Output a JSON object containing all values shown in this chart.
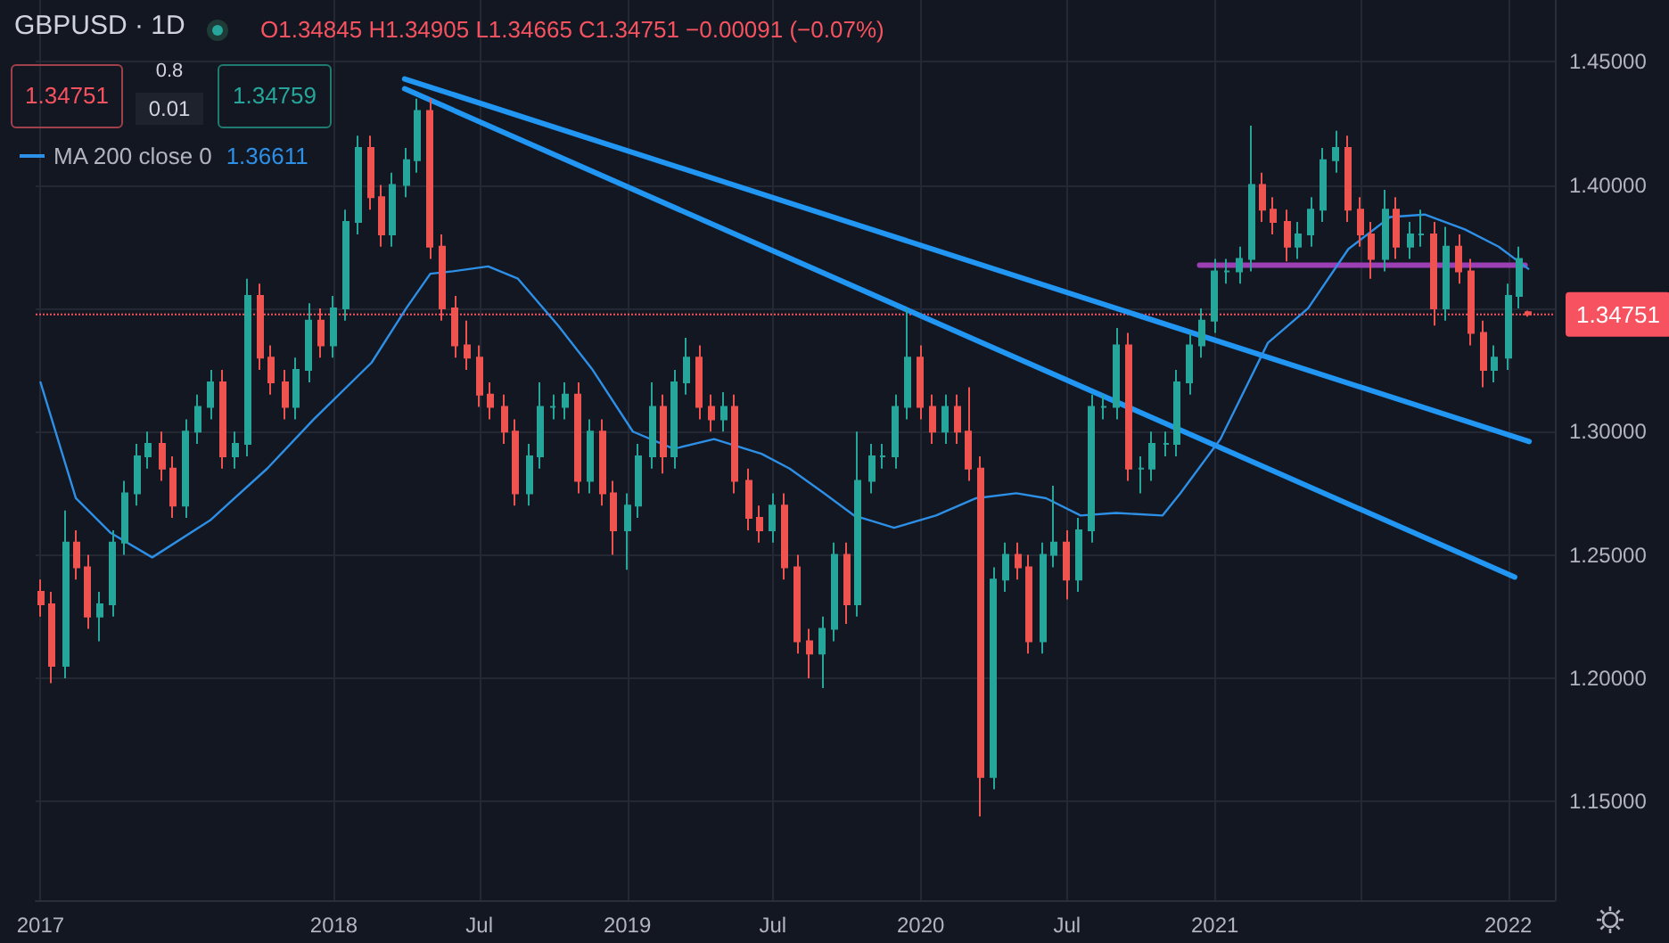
{
  "chart_data": {
    "type": "candlestick",
    "title": "GBPUSD · 1D",
    "annotations": [
      "O1.34845 H1.34905 L1.34665 C1.34751 −0.00091 (−0.07%)",
      "1.34751",
      "0.8",
      "0.01",
      "1.34759",
      "1.36611"
    ],
    "x": [
      "2017-01-01",
      "2017-01-15",
      "2017-02-01",
      "2017-02-15",
      "2017-03-01",
      "2017-03-15",
      "2017-04-01",
      "2017-04-15",
      "2017-05-01",
      "2017-05-15",
      "2017-06-01",
      "2017-06-15",
      "2017-07-01",
      "2017-07-15",
      "2017-08-01",
      "2017-08-15",
      "2017-09-01",
      "2017-09-15",
      "2017-10-01",
      "2017-10-15",
      "2017-11-01",
      "2017-11-15",
      "2017-12-01",
      "2017-12-15",
      "2018-01-01",
      "2018-01-15",
      "2018-02-01",
      "2018-02-15",
      "2018-03-01",
      "2018-03-15",
      "2018-04-01",
      "2018-04-15",
      "2018-05-01",
      "2018-05-15",
      "2018-06-01",
      "2018-06-15",
      "2018-07-01",
      "2018-07-15",
      "2018-08-01",
      "2018-08-15",
      "2018-09-01",
      "2018-09-15",
      "2018-10-01",
      "2018-10-15",
      "2018-11-01",
      "2018-11-15",
      "2018-12-01",
      "2018-12-15",
      "2019-01-01",
      "2019-01-15",
      "2019-02-01",
      "2019-02-15",
      "2019-03-01",
      "2019-03-15",
      "2019-04-01",
      "2019-04-15",
      "2019-05-01",
      "2019-05-15",
      "2019-06-01",
      "2019-06-15",
      "2019-07-01",
      "2019-07-15",
      "2019-08-01",
      "2019-08-15",
      "2019-09-01",
      "2019-09-15",
      "2019-10-01",
      "2019-10-15",
      "2019-11-01",
      "2019-11-15",
      "2019-12-01",
      "2019-12-15",
      "2020-01-01",
      "2020-01-15",
      "2020-02-01",
      "2020-02-15",
      "2020-03-01",
      "2020-03-15",
      "2020-04-01",
      "2020-04-15",
      "2020-05-01",
      "2020-05-15",
      "2020-06-01",
      "2020-06-15",
      "2020-07-01",
      "2020-07-15",
      "2020-08-01",
      "2020-08-15",
      "2020-09-01",
      "2020-09-15",
      "2020-10-01",
      "2020-10-15",
      "2020-11-01",
      "2020-11-15",
      "2020-12-01",
      "2020-12-15",
      "2021-01-01",
      "2021-01-15",
      "2021-02-01",
      "2021-02-15",
      "2021-03-01",
      "2021-03-15",
      "2021-04-01",
      "2021-04-15",
      "2021-05-01",
      "2021-05-15",
      "2021-06-01",
      "2021-06-15",
      "2021-07-01",
      "2021-07-15",
      "2021-08-01",
      "2021-08-15",
      "2021-09-01",
      "2021-09-15",
      "2021-10-01",
      "2021-10-15",
      "2021-11-01",
      "2021-11-15",
      "2021-12-01",
      "2021-12-15",
      "2022-01-01",
      "2022-01-15",
      "2022-01-26"
    ],
    "ohlc": [
      [
        1.235,
        1.24,
        1.225,
        1.23
      ],
      [
        1.23,
        1.235,
        1.198,
        1.205
      ],
      [
        1.205,
        1.268,
        1.2,
        1.255
      ],
      [
        1.255,
        1.26,
        1.24,
        1.245
      ],
      [
        1.245,
        1.25,
        1.22,
        1.225
      ],
      [
        1.225,
        1.235,
        1.215,
        1.23
      ],
      [
        1.23,
        1.26,
        1.225,
        1.255
      ],
      [
        1.255,
        1.28,
        1.25,
        1.275
      ],
      [
        1.275,
        1.295,
        1.27,
        1.29
      ],
      [
        1.29,
        1.3,
        1.285,
        1.295
      ],
      [
        1.295,
        1.3,
        1.28,
        1.285
      ],
      [
        1.285,
        1.29,
        1.265,
        1.27
      ],
      [
        1.27,
        1.305,
        1.265,
        1.3
      ],
      [
        1.3,
        1.315,
        1.295,
        1.31
      ],
      [
        1.31,
        1.325,
        1.305,
        1.32
      ],
      [
        1.32,
        1.325,
        1.285,
        1.29
      ],
      [
        1.29,
        1.3,
        1.285,
        1.295
      ],
      [
        1.295,
        1.362,
        1.29,
        1.355
      ],
      [
        1.355,
        1.36,
        1.325,
        1.33
      ],
      [
        1.33,
        1.335,
        1.315,
        1.32
      ],
      [
        1.32,
        1.325,
        1.305,
        1.31
      ],
      [
        1.31,
        1.33,
        1.305,
        1.325
      ],
      [
        1.325,
        1.352,
        1.32,
        1.345
      ],
      [
        1.345,
        1.35,
        1.33,
        1.335
      ],
      [
        1.335,
        1.355,
        1.33,
        1.35
      ],
      [
        1.35,
        1.39,
        1.345,
        1.385
      ],
      [
        1.385,
        1.42,
        1.38,
        1.415
      ],
      [
        1.415,
        1.42,
        1.39,
        1.395
      ],
      [
        1.395,
        1.4,
        1.375,
        1.38
      ],
      [
        1.38,
        1.405,
        1.375,
        1.4
      ],
      [
        1.4,
        1.415,
        1.395,
        1.41
      ],
      [
        1.41,
        1.435,
        1.405,
        1.43
      ],
      [
        1.43,
        1.435,
        1.37,
        1.375
      ],
      [
        1.375,
        1.38,
        1.345,
        1.35
      ],
      [
        1.35,
        1.355,
        1.33,
        1.335
      ],
      [
        1.335,
        1.345,
        1.325,
        1.33
      ],
      [
        1.33,
        1.335,
        1.31,
        1.315
      ],
      [
        1.315,
        1.32,
        1.305,
        1.31
      ],
      [
        1.31,
        1.315,
        1.295,
        1.3
      ],
      [
        1.3,
        1.305,
        1.27,
        1.275
      ],
      [
        1.275,
        1.295,
        1.27,
        1.29
      ],
      [
        1.29,
        1.32,
        1.285,
        1.31
      ],
      [
        1.31,
        1.315,
        1.305,
        1.31
      ],
      [
        1.31,
        1.32,
        1.305,
        1.315
      ],
      [
        1.315,
        1.32,
        1.275,
        1.28
      ],
      [
        1.28,
        1.305,
        1.275,
        1.3
      ],
      [
        1.3,
        1.305,
        1.27,
        1.275
      ],
      [
        1.275,
        1.28,
        1.25,
        1.26
      ],
      [
        1.26,
        1.275,
        1.244,
        1.27
      ],
      [
        1.27,
        1.295,
        1.265,
        1.29
      ],
      [
        1.29,
        1.32,
        1.285,
        1.31
      ],
      [
        1.31,
        1.315,
        1.283,
        1.29
      ],
      [
        1.29,
        1.325,
        1.285,
        1.32
      ],
      [
        1.32,
        1.338,
        1.315,
        1.33
      ],
      [
        1.33,
        1.335,
        1.305,
        1.31
      ],
      [
        1.31,
        1.315,
        1.3,
        1.305
      ],
      [
        1.305,
        1.316,
        1.3,
        1.31
      ],
      [
        1.31,
        1.315,
        1.275,
        1.28
      ],
      [
        1.28,
        1.285,
        1.26,
        1.265
      ],
      [
        1.265,
        1.27,
        1.255,
        1.26
      ],
      [
        1.26,
        1.275,
        1.255,
        1.27
      ],
      [
        1.27,
        1.275,
        1.24,
        1.245
      ],
      [
        1.245,
        1.25,
        1.21,
        1.215
      ],
      [
        1.215,
        1.22,
        1.2,
        1.21
      ],
      [
        1.21,
        1.225,
        1.196,
        1.22
      ],
      [
        1.22,
        1.255,
        1.215,
        1.25
      ],
      [
        1.25,
        1.255,
        1.222,
        1.23
      ],
      [
        1.23,
        1.3,
        1.225,
        1.28
      ],
      [
        1.28,
        1.295,
        1.275,
        1.29
      ],
      [
        1.29,
        1.295,
        1.285,
        1.29
      ],
      [
        1.29,
        1.315,
        1.285,
        1.31
      ],
      [
        1.31,
        1.35,
        1.305,
        1.33
      ],
      [
        1.33,
        1.335,
        1.305,
        1.31
      ],
      [
        1.31,
        1.315,
        1.295,
        1.3
      ],
      [
        1.3,
        1.315,
        1.295,
        1.31
      ],
      [
        1.31,
        1.315,
        1.295,
        1.3
      ],
      [
        1.3,
        1.318,
        1.28,
        1.285
      ],
      [
        1.285,
        1.29,
        1.144,
        1.16
      ],
      [
        1.16,
        1.245,
        1.155,
        1.24
      ],
      [
        1.24,
        1.255,
        1.235,
        1.25
      ],
      [
        1.25,
        1.255,
        1.24,
        1.245
      ],
      [
        1.245,
        1.25,
        1.21,
        1.215
      ],
      [
        1.215,
        1.255,
        1.21,
        1.25
      ],
      [
        1.25,
        1.278,
        1.245,
        1.255
      ],
      [
        1.255,
        1.26,
        1.232,
        1.24
      ],
      [
        1.24,
        1.265,
        1.235,
        1.26
      ],
      [
        1.26,
        1.315,
        1.255,
        1.31
      ],
      [
        1.31,
        1.315,
        1.305,
        1.31
      ],
      [
        1.31,
        1.342,
        1.305,
        1.335
      ],
      [
        1.335,
        1.34,
        1.28,
        1.285
      ],
      [
        1.285,
        1.29,
        1.275,
        1.285
      ],
      [
        1.285,
        1.3,
        1.28,
        1.295
      ],
      [
        1.295,
        1.3,
        1.29,
        1.295
      ],
      [
        1.295,
        1.325,
        1.29,
        1.32
      ],
      [
        1.32,
        1.34,
        1.315,
        1.335
      ],
      [
        1.335,
        1.35,
        1.33,
        1.345
      ],
      [
        1.345,
        1.37,
        1.34,
        1.365
      ],
      [
        1.365,
        1.37,
        1.36,
        1.365
      ],
      [
        1.365,
        1.375,
        1.36,
        1.37
      ],
      [
        1.37,
        1.424,
        1.365,
        1.4
      ],
      [
        1.4,
        1.405,
        1.385,
        1.39
      ],
      [
        1.39,
        1.395,
        1.38,
        1.385
      ],
      [
        1.385,
        1.39,
        1.369,
        1.375
      ],
      [
        1.375,
        1.385,
        1.37,
        1.38
      ],
      [
        1.38,
        1.395,
        1.375,
        1.39
      ],
      [
        1.39,
        1.415,
        1.385,
        1.41
      ],
      [
        1.41,
        1.422,
        1.405,
        1.415
      ],
      [
        1.415,
        1.42,
        1.385,
        1.39
      ],
      [
        1.39,
        1.395,
        1.375,
        1.38
      ],
      [
        1.38,
        1.385,
        1.362,
        1.37
      ],
      [
        1.37,
        1.398,
        1.365,
        1.39
      ],
      [
        1.39,
        1.395,
        1.37,
        1.375
      ],
      [
        1.375,
        1.385,
        1.37,
        1.38
      ],
      [
        1.38,
        1.39,
        1.375,
        1.38
      ],
      [
        1.38,
        1.385,
        1.343,
        1.35
      ],
      [
        1.35,
        1.383,
        1.345,
        1.375
      ],
      [
        1.375,
        1.38,
        1.36,
        1.365
      ],
      [
        1.365,
        1.37,
        1.335,
        1.34
      ],
      [
        1.34,
        1.345,
        1.318,
        1.325
      ],
      [
        1.325,
        1.335,
        1.32,
        1.33
      ],
      [
        1.33,
        1.36,
        1.325,
        1.355
      ],
      [
        1.355,
        1.375,
        1.35,
        1.37
      ],
      [
        1.34845,
        1.34905,
        1.34665,
        1.34751
      ]
    ],
    "series": [
      {
        "name": "MA 200 close 0",
        "type": "line",
        "color": "#2d8fe6",
        "x": [
          "2017-01-01",
          "2017-02-14",
          "2017-03-29",
          "2017-05-20",
          "2017-07-31",
          "2017-10-10",
          "2017-12-07",
          "2018-02-17",
          "2018-04-01",
          "2018-05-01",
          "2018-05-29",
          "2018-07-12",
          "2018-08-18",
          "2018-10-07",
          "2018-11-19",
          "2019-01-08",
          "2019-02-28",
          "2019-04-19",
          "2019-06-17",
          "2019-07-22",
          "2019-09-03",
          "2019-10-10",
          "2019-11-29",
          "2020-01-20",
          "2020-03-10",
          "2020-04-29",
          "2020-06-05",
          "2020-07-18",
          "2020-08-31",
          "2020-10-28",
          "2020-11-19",
          "2021-01-08",
          "2021-03-08",
          "2021-04-27",
          "2021-06-16",
          "2021-08-07",
          "2021-09-19",
          "2021-11-08",
          "2021-12-20",
          "2022-01-26"
        ],
        "values": [
          1.32,
          1.273,
          1.259,
          1.249,
          1.264,
          1.285,
          1.305,
          1.328,
          1.35,
          1.364,
          1.365,
          1.367,
          1.362,
          1.343,
          1.325,
          1.3,
          1.293,
          1.297,
          1.291,
          1.285,
          1.275,
          1.266,
          1.261,
          1.266,
          1.273,
          1.275,
          1.273,
          1.266,
          1.267,
          1.266,
          1.275,
          1.297,
          1.336,
          1.35,
          1.374,
          1.387,
          1.388,
          1.382,
          1.375,
          1.366
        ]
      },
      {
        "type": "line",
        "color": "#2196f3",
        "x": [
          "2018-03-30",
          "2022-01-27"
        ],
        "values": [
          1.443,
          1.296
        ]
      },
      {
        "type": "line",
        "color": "#2196f3",
        "x": [
          "2018-03-30",
          "2022-01-09"
        ],
        "values": [
          1.439,
          1.241
        ]
      },
      {
        "type": "line",
        "color": "#9c3fb5",
        "x": [
          "2020-12-13",
          "2022-01-22"
        ],
        "values": [
          1.3675,
          1.3675
        ]
      }
    ],
    "ref_lines": [
      {
        "axis": "y",
        "value": 1.34751,
        "label": "1.34751",
        "color": "#f7525f",
        "line_style": "dotted"
      }
    ],
    "xlim": [
      "2016-12-26",
      "2022-02-28"
    ],
    "xticks": [
      {
        "value": "2017-01-01",
        "label": "2017"
      },
      {
        "value": "2018-01-01",
        "label": "2018"
      },
      {
        "value": "2018-07-01",
        "label": "Jul"
      },
      {
        "value": "2019-01-01",
        "label": "2019"
      },
      {
        "value": "2019-07-01",
        "label": "Jul"
      },
      {
        "value": "2020-01-01",
        "label": "2020"
      },
      {
        "value": "2020-07-01",
        "label": "Jul"
      },
      {
        "value": "2021-01-01",
        "label": "2021"
      },
      {
        "value": "2021-07-01",
        "label": null
      },
      {
        "value": "2022-01-01",
        "label": "2022"
      }
    ],
    "ylim": [
      1.11,
      1.475
    ],
    "yticks": [
      {
        "value": 1.15,
        "label": "1.15000"
      },
      {
        "value": 1.2,
        "label": "1.20000"
      },
      {
        "value": 1.25,
        "label": "1.25000"
      },
      {
        "value": 1.3,
        "label": "1.30000"
      },
      {
        "value": 1.35,
        "label": null
      },
      {
        "value": 1.4,
        "label": "1.40000"
      },
      {
        "value": 1.45,
        "label": "1.45000"
      }
    ],
    "grid": true,
    "legend": "top left"
  }
}
